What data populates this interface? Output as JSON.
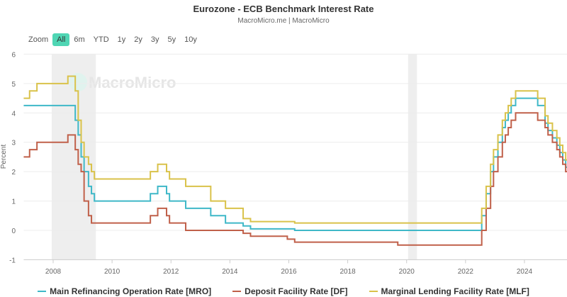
{
  "chart_data": {
    "type": "line",
    "title": "Eurozone - ECB Benchmark Interest Rate",
    "subtitle": "MacroMicro.me | MacroMicro",
    "watermark": "MacroMicro",
    "ylabel": "Percent",
    "xlabel": "",
    "ylim": [
      -1,
      6
    ],
    "xlim": [
      2007,
      2025.45
    ],
    "yticks": [
      "6",
      "5",
      "4",
      "3",
      "2",
      "1",
      "0",
      "-1"
    ],
    "xticks": [
      "2008",
      "2010",
      "2012",
      "2014",
      "2016",
      "2018",
      "2020",
      "2022",
      "2024"
    ],
    "grid": true,
    "legend_position": "bottom",
    "shaded_periods": [
      [
        2007.95,
        2009.45
      ],
      [
        2020.05,
        2020.35
      ]
    ],
    "series": [
      {
        "name": "Main Refinancing Operation Rate [MRO]",
        "color": "#3fb8c8",
        "points": [
          [
            2007,
            4.25
          ],
          [
            2008.75,
            3.75
          ],
          [
            2008.85,
            3.25
          ],
          [
            2008.95,
            2.5
          ],
          [
            2009.05,
            2.0
          ],
          [
            2009.2,
            1.5
          ],
          [
            2009.3,
            1.25
          ],
          [
            2009.4,
            1.0
          ],
          [
            2011.3,
            1.25
          ],
          [
            2011.55,
            1.5
          ],
          [
            2011.85,
            1.25
          ],
          [
            2011.95,
            1.0
          ],
          [
            2012.5,
            0.75
          ],
          [
            2013.35,
            0.5
          ],
          [
            2013.85,
            0.25
          ],
          [
            2014.45,
            0.15
          ],
          [
            2014.7,
            0.05
          ],
          [
            2016.2,
            0
          ],
          [
            2022.55,
            0.5
          ],
          [
            2022.7,
            1.25
          ],
          [
            2022.85,
            2.0
          ],
          [
            2022.95,
            2.5
          ],
          [
            2023.1,
            3.0
          ],
          [
            2023.25,
            3.5
          ],
          [
            2023.35,
            3.75
          ],
          [
            2023.45,
            4.0
          ],
          [
            2023.55,
            4.25
          ],
          [
            2023.7,
            4.5
          ],
          [
            2024.45,
            4.25
          ],
          [
            2024.7,
            3.65
          ],
          [
            2024.8,
            3.4
          ],
          [
            2024.95,
            3.15
          ],
          [
            2025.1,
            2.9
          ],
          [
            2025.2,
            2.65
          ],
          [
            2025.3,
            2.4
          ],
          [
            2025.4,
            2.15
          ]
        ]
      },
      {
        "name": "Deposit Facility Rate [DF]",
        "color": "#c0604a",
        "points": [
          [
            2007,
            2.5
          ],
          [
            2007.2,
            2.75
          ],
          [
            2007.45,
            3.0
          ],
          [
            2008.5,
            3.25
          ],
          [
            2008.75,
            2.75
          ],
          [
            2008.85,
            2.25
          ],
          [
            2008.95,
            2.0
          ],
          [
            2009.05,
            1.0
          ],
          [
            2009.2,
            0.5
          ],
          [
            2009.3,
            0.25
          ],
          [
            2011.3,
            0.5
          ],
          [
            2011.55,
            0.75
          ],
          [
            2011.85,
            0.5
          ],
          [
            2011.95,
            0.25
          ],
          [
            2012.5,
            0
          ],
          [
            2014.45,
            -0.1
          ],
          [
            2014.7,
            -0.2
          ],
          [
            2015.95,
            -0.3
          ],
          [
            2016.2,
            -0.4
          ],
          [
            2019.7,
            -0.5
          ],
          [
            2022.55,
            0
          ],
          [
            2022.7,
            0.75
          ],
          [
            2022.85,
            1.5
          ],
          [
            2022.95,
            2.0
          ],
          [
            2023.1,
            2.5
          ],
          [
            2023.25,
            3.0
          ],
          [
            2023.35,
            3.25
          ],
          [
            2023.45,
            3.5
          ],
          [
            2023.55,
            3.75
          ],
          [
            2023.7,
            4.0
          ],
          [
            2024.45,
            3.75
          ],
          [
            2024.7,
            3.5
          ],
          [
            2024.8,
            3.25
          ],
          [
            2024.95,
            3.0
          ],
          [
            2025.1,
            2.75
          ],
          [
            2025.2,
            2.5
          ],
          [
            2025.3,
            2.25
          ],
          [
            2025.4,
            2.0
          ]
        ]
      },
      {
        "name": "Marginal Lending Facility Rate [MLF]",
        "color": "#d9c24a",
        "points": [
          [
            2007,
            4.5
          ],
          [
            2007.2,
            4.75
          ],
          [
            2007.45,
            5.0
          ],
          [
            2008.5,
            5.25
          ],
          [
            2008.75,
            4.75
          ],
          [
            2008.85,
            3.75
          ],
          [
            2008.95,
            3.0
          ],
          [
            2009.05,
            2.5
          ],
          [
            2009.2,
            2.25
          ],
          [
            2009.3,
            2.0
          ],
          [
            2009.4,
            1.75
          ],
          [
            2011.3,
            2.0
          ],
          [
            2011.55,
            2.25
          ],
          [
            2011.85,
            2.0
          ],
          [
            2011.95,
            1.75
          ],
          [
            2012.5,
            1.5
          ],
          [
            2013.35,
            1.0
          ],
          [
            2013.85,
            0.75
          ],
          [
            2014.45,
            0.4
          ],
          [
            2014.7,
            0.3
          ],
          [
            2016.2,
            0.25
          ],
          [
            2022.55,
            0.75
          ],
          [
            2022.7,
            1.5
          ],
          [
            2022.85,
            2.25
          ],
          [
            2022.95,
            2.75
          ],
          [
            2023.1,
            3.25
          ],
          [
            2023.25,
            3.75
          ],
          [
            2023.35,
            4.0
          ],
          [
            2023.45,
            4.25
          ],
          [
            2023.55,
            4.5
          ],
          [
            2023.7,
            4.75
          ],
          [
            2024.45,
            4.5
          ],
          [
            2024.7,
            3.9
          ],
          [
            2024.8,
            3.65
          ],
          [
            2024.95,
            3.4
          ],
          [
            2025.1,
            3.15
          ],
          [
            2025.2,
            2.9
          ],
          [
            2025.3,
            2.65
          ],
          [
            2025.4,
            2.4
          ]
        ]
      }
    ]
  },
  "zoom": {
    "label": "Zoom",
    "buttons": [
      "All",
      "6m",
      "YTD",
      "1y",
      "2y",
      "3y",
      "5y",
      "10y"
    ],
    "active": "All"
  }
}
